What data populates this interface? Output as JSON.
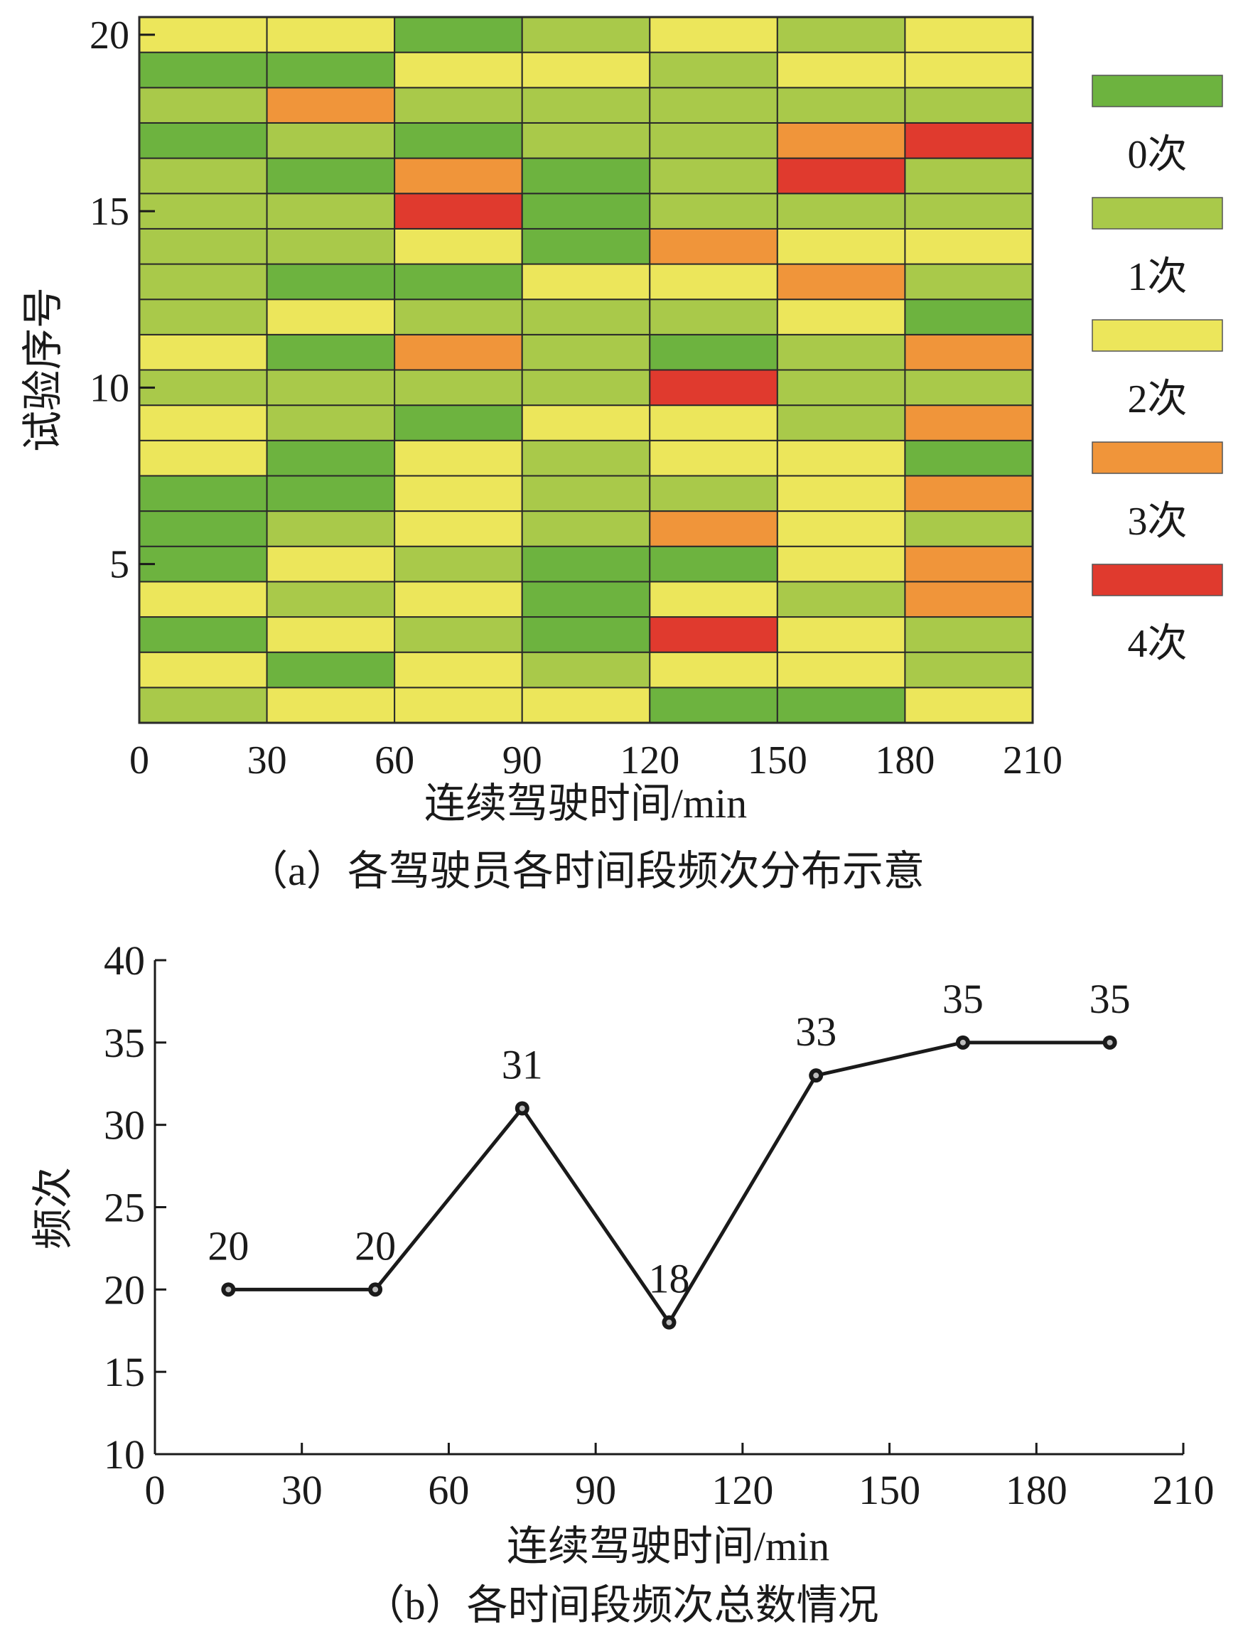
{
  "chart_data": [
    {
      "type": "heatmap",
      "caption": "（a）各驾驶员各时间段频次分布示意",
      "xlabel": "连续驾驶时间/min",
      "ylabel": "试验序号",
      "xlim": [
        0,
        210
      ],
      "ylim": [
        1,
        20
      ],
      "x_ticks": [
        "0",
        "30",
        "60",
        "90",
        "120",
        "150",
        "180",
        "210"
      ],
      "y_ticks": [
        "5",
        "10",
        "15",
        "20"
      ],
      "y_tick_values": [
        5,
        10,
        15,
        20
      ],
      "columns": [
        "0-30",
        "30-60",
        "60-90",
        "90-120",
        "120-150",
        "150-180",
        "180-210"
      ],
      "rows": [
        1,
        2,
        3,
        4,
        5,
        6,
        7,
        8,
        9,
        10,
        11,
        12,
        13,
        14,
        15,
        16,
        17,
        18,
        19,
        20
      ],
      "values": [
        [
          1,
          2,
          2,
          2,
          0,
          0,
          2
        ],
        [
          2,
          0,
          2,
          1,
          2,
          2,
          1
        ],
        [
          0,
          2,
          1,
          0,
          4,
          2,
          1
        ],
        [
          2,
          1,
          2,
          0,
          2,
          1,
          3
        ],
        [
          0,
          2,
          1,
          0,
          0,
          2,
          3
        ],
        [
          0,
          1,
          2,
          1,
          3,
          2,
          1
        ],
        [
          0,
          0,
          2,
          1,
          1,
          2,
          3
        ],
        [
          2,
          0,
          2,
          1,
          2,
          2,
          0
        ],
        [
          2,
          1,
          0,
          2,
          2,
          1,
          3
        ],
        [
          1,
          1,
          1,
          1,
          4,
          1,
          1
        ],
        [
          2,
          0,
          3,
          1,
          0,
          1,
          3
        ],
        [
          1,
          2,
          1,
          1,
          1,
          2,
          0
        ],
        [
          1,
          0,
          0,
          2,
          2,
          3,
          1
        ],
        [
          1,
          1,
          2,
          0,
          3,
          2,
          2
        ],
        [
          1,
          1,
          4,
          0,
          1,
          1,
          1
        ],
        [
          1,
          0,
          3,
          0,
          1,
          4,
          1
        ],
        [
          0,
          1,
          0,
          1,
          1,
          3,
          4
        ],
        [
          1,
          3,
          1,
          1,
          1,
          1,
          1
        ],
        [
          0,
          0,
          2,
          2,
          1,
          2,
          2
        ],
        [
          2,
          2,
          0,
          1,
          2,
          1,
          2
        ]
      ],
      "legend": [
        {
          "label": "0次",
          "value": 0,
          "color": "#6db33f"
        },
        {
          "label": "1次",
          "value": 1,
          "color": "#a9c94a"
        },
        {
          "label": "2次",
          "value": 2,
          "color": "#ece65b"
        },
        {
          "label": "3次",
          "value": 3,
          "color": "#f0953a"
        },
        {
          "label": "4次",
          "value": 4,
          "color": "#e03a2e"
        }
      ],
      "legend_placement": "right"
    },
    {
      "type": "line",
      "caption": "（b）各时间段频次总数情况",
      "xlabel": "连续驾驶时间/min",
      "ylabel": "频次",
      "xlim": [
        0,
        210
      ],
      "ylim": [
        10,
        40
      ],
      "x_ticks": [
        "0",
        "30",
        "60",
        "90",
        "120",
        "150",
        "180",
        "210"
      ],
      "y_ticks": [
        "10",
        "15",
        "20",
        "25",
        "30",
        "35",
        "40"
      ],
      "x": [
        15,
        45,
        75,
        105,
        135,
        165,
        195
      ],
      "y": [
        20,
        20,
        31,
        18,
        33,
        35,
        35
      ],
      "point_labels": [
        "20",
        "20",
        "31",
        "18",
        "33",
        "35",
        "35"
      ],
      "line_color": "#1a1a1a"
    }
  ]
}
